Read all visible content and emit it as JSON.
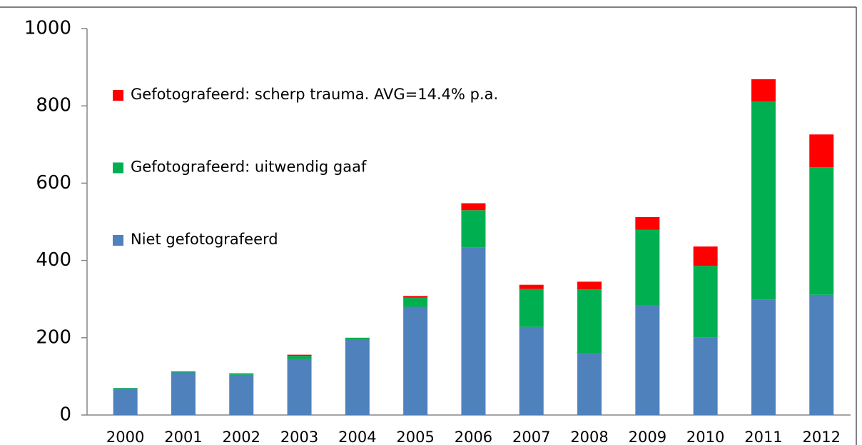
{
  "chart_data": {
    "type": "bar",
    "stacked": true,
    "categories": [
      "2000",
      "2001",
      "2002",
      "2003",
      "2004",
      "2005",
      "2006",
      "2007",
      "2008",
      "2009",
      "2010",
      "2011",
      "2012"
    ],
    "series": [
      {
        "name": "Niet gefotografeerd",
        "color": "#4f81bd",
        "values": [
          68,
          110,
          104,
          145,
          196,
          280,
          433,
          228,
          160,
          283,
          200,
          298,
          311
        ]
      },
      {
        "name": "Gefotografeerd: uitwendig gaaf",
        "color": "#00b050",
        "values": [
          2,
          3,
          4,
          8,
          4,
          24,
          97,
          98,
          165,
          196,
          186,
          513,
          330
        ]
      },
      {
        "name": "Gefotografeerd: scherp trauma. AVG=14.4% p.a.",
        "color": "#ff0000",
        "values": [
          0,
          0,
          0,
          3,
          0,
          4,
          18,
          11,
          20,
          33,
          50,
          58,
          85
        ]
      }
    ],
    "ylim": [
      0,
      1000
    ],
    "yticks": [
      0,
      200,
      400,
      600,
      800,
      1000
    ],
    "legend": "upper left"
  }
}
